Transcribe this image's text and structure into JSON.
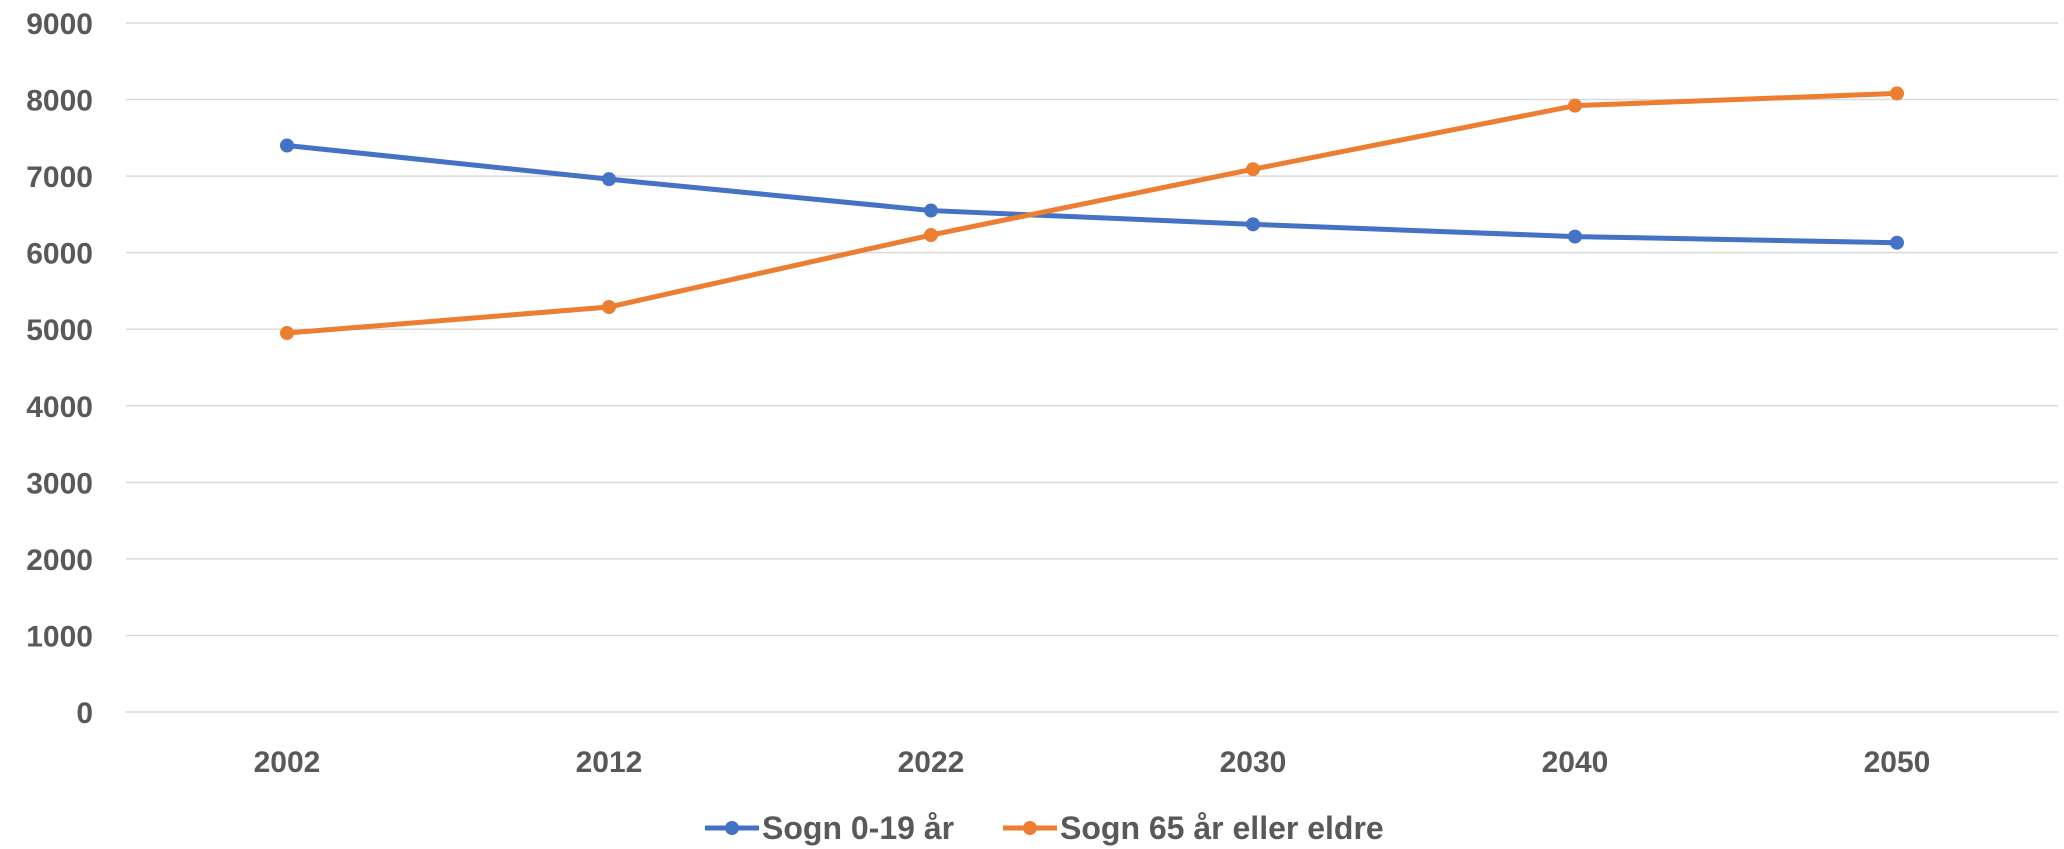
{
  "chart_data": {
    "type": "line",
    "categories": [
      "2002",
      "2012",
      "2022",
      "2030",
      "2040",
      "2050"
    ],
    "series": [
      {
        "name": "Sogn 0-19 år",
        "color": "#4472c4",
        "values": [
          7400,
          6960,
          6550,
          6370,
          6210,
          6130
        ]
      },
      {
        "name": "Sogn 65 år eller eldre",
        "color": "#ed7d31",
        "values": [
          4950,
          5290,
          6230,
          7090,
          7920,
          8080
        ]
      }
    ],
    "ylim": [
      0,
      9000
    ],
    "y_ticks": [
      0,
      1000,
      2000,
      3000,
      4000,
      5000,
      6000,
      7000,
      8000,
      9000
    ],
    "grid": true,
    "legend_position": "bottom"
  }
}
